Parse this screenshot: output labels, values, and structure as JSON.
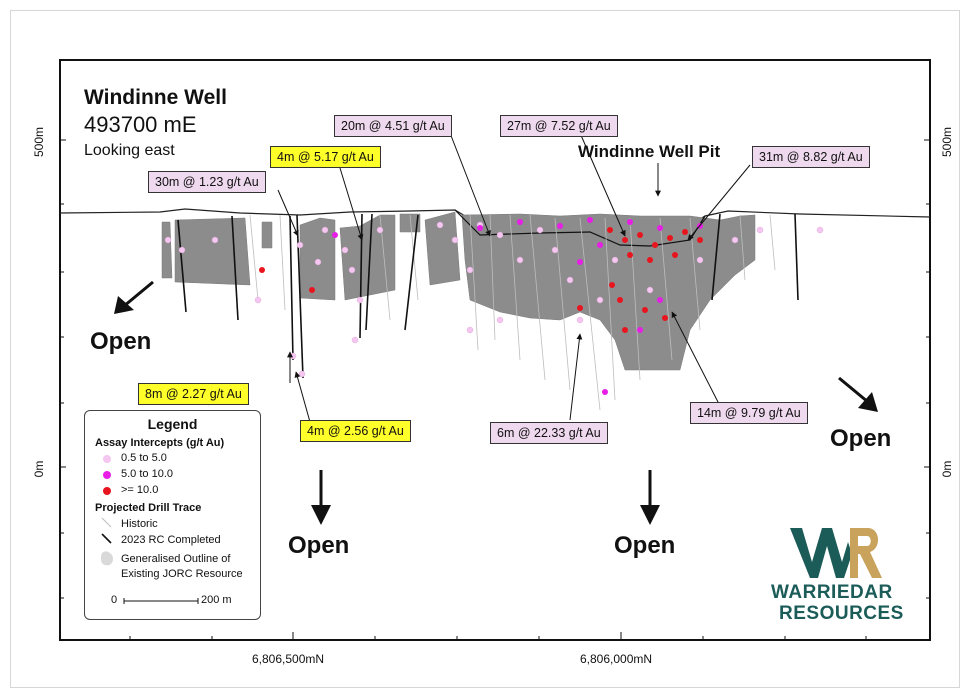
{
  "title": {
    "name": "Windinne Well",
    "easting": "493700 mE",
    "view": "Looking east"
  },
  "pit_label": "Windinne Well Pit",
  "intercepts": {
    "a": "30m @ 1.23 g/t Au",
    "b": "4m @ 5.17 g/t Au",
    "c": "20m @ 4.51 g/t Au",
    "d": "27m @ 7.52 g/t Au",
    "e": "31m @ 8.82 g/t Au",
    "f": "8m @ 2.27 g/t Au",
    "g": "4m @ 2.56 g/t Au",
    "h": "6m @ 22.33 g/t Au",
    "i": "14m @ 9.79 g/t Au"
  },
  "open_label": "Open",
  "axes": {
    "x1": "6,806,500mN",
    "x2": "6,806,000mN",
    "elev_top": "500m",
    "elev_bottom": "0m"
  },
  "legend": {
    "title": "Legend",
    "assay_heading": "Assay Intercepts (g/t Au)",
    "assay_items": [
      {
        "label": "0.5 to 5.0",
        "color": "#f4c6f0"
      },
      {
        "label": "5.0 to 10.0",
        "color": "#e61ee6"
      },
      {
        "label": ">= 10.0",
        "color": "#e8141e"
      }
    ],
    "trace_heading": "Projected Drill Trace",
    "historic": "Historic",
    "rc": "2023 RC Completed",
    "outline_1": "Generalised Outline of",
    "outline_2": "Existing JORC Resource",
    "scale_start": "0",
    "scale_end": "200 m"
  },
  "logo": {
    "line1": "WARRIEDAR",
    "line2": "RESOURCES",
    "colors": {
      "teal": "#1b5b58",
      "gold": "#c9a25c"
    }
  },
  "colors": {
    "resource": "#8c8c8c",
    "callout_pink": "#efd9ee",
    "callout_yellow": "#ffff2a"
  }
}
